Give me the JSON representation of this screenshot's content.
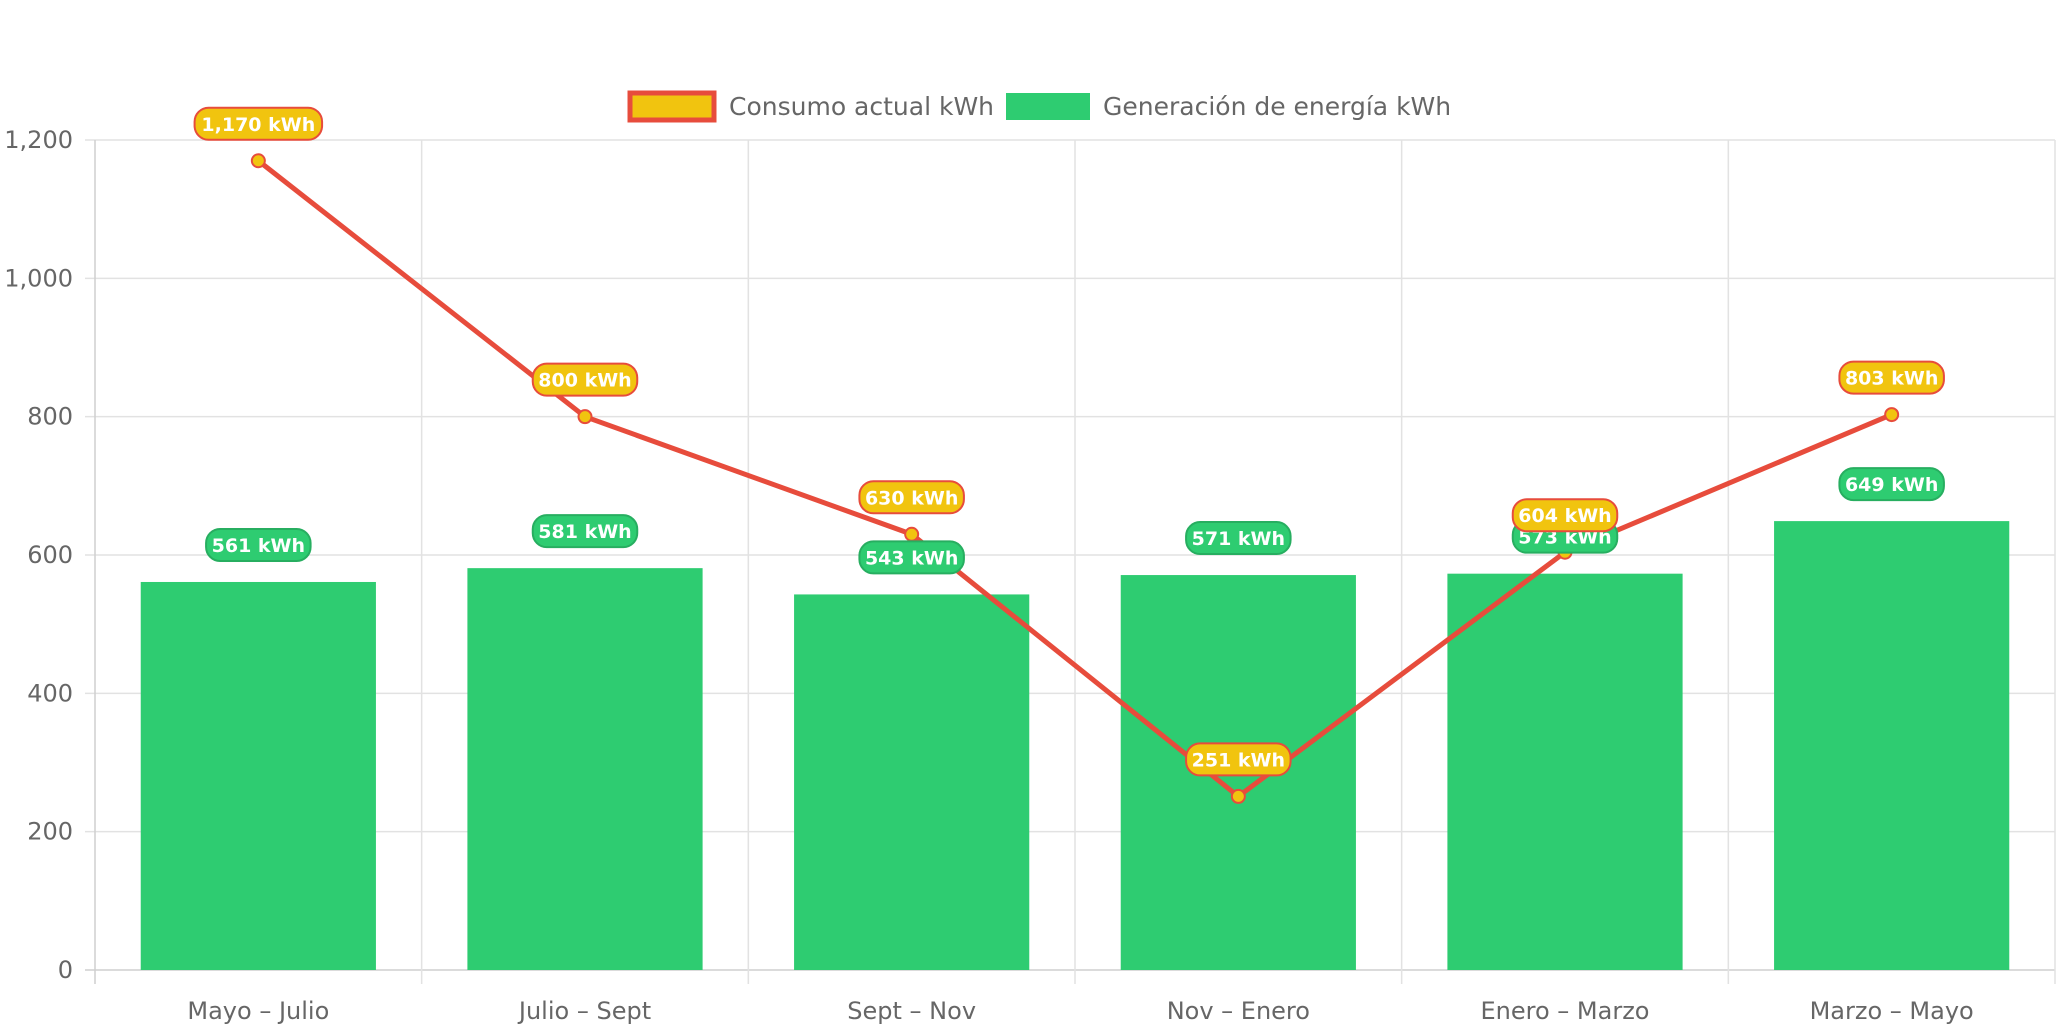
{
  "chart_data": {
    "type": "bar",
    "title": "",
    "xlabel": "",
    "ylabel": "",
    "categories": [
      "Mayo – Julio",
      "Julio – Sept",
      "Sept – Nov",
      "Nov – Enero",
      "Enero – Marzo",
      "Marzo – Mayo"
    ],
    "ylim": [
      0,
      1200
    ],
    "yticks": [
      0,
      200,
      400,
      600,
      800,
      1000,
      1200
    ],
    "ytick_labels": [
      "0",
      "200",
      "400",
      "600",
      "800",
      "1,000",
      "1,200"
    ],
    "grid": true,
    "legend_position": "top-center",
    "series": [
      {
        "name": "Consumo actual kWh",
        "type": "line",
        "values": [
          1170,
          800,
          630,
          251,
          604,
          803
        ],
        "labels": [
          "1,170 kWh",
          "800 kWh",
          "630 kWh",
          "251 kWh",
          "604 kWh",
          "803 kWh"
        ],
        "color": "#e74c3c",
        "fill": "#f1c40f"
      },
      {
        "name": "Generación de energía kWh",
        "type": "bar",
        "values": [
          561,
          581,
          543,
          571,
          573,
          649
        ],
        "labels": [
          "561 kWh",
          "581 kWh",
          "543 kWh",
          "571 kWh",
          "573 kWh",
          "649 kWh"
        ],
        "color": "#2ecc71",
        "label_border": "#27ae60"
      }
    ]
  }
}
